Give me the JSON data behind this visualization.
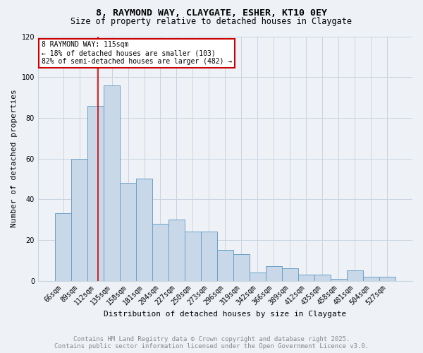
{
  "title1": "8, RAYMOND WAY, CLAYGATE, ESHER, KT10 0EY",
  "title2": "Size of property relative to detached houses in Claygate",
  "xlabel": "Distribution of detached houses by size in Claygate",
  "ylabel": "Number of detached properties",
  "categories": [
    "66sqm",
    "89sqm",
    "112sqm",
    "135sqm",
    "158sqm",
    "181sqm",
    "204sqm",
    "227sqm",
    "250sqm",
    "273sqm",
    "296sqm",
    "319sqm",
    "342sqm",
    "366sqm",
    "389sqm",
    "412sqm",
    "435sqm",
    "458sqm",
    "481sqm",
    "504sqm",
    "527sqm"
  ],
  "values": [
    33,
    60,
    86,
    96,
    48,
    50,
    28,
    30,
    24,
    24,
    15,
    13,
    4,
    7,
    6,
    3,
    3,
    1,
    5,
    2,
    2
  ],
  "bar_color": "#c8d8e8",
  "bar_edge_color": "#6aa0c8",
  "grid_color": "#c8d4e0",
  "background_color": "#eef2f7",
  "annotation_text": "8 RAYMOND WAY: 115sqm\n← 18% of detached houses are smaller (103)\n82% of semi-detached houses are larger (482) →",
  "annotation_box_color": "#ffffff",
  "annotation_border_color": "#cc0000",
  "footer1": "Contains HM Land Registry data © Crown copyright and database right 2025.",
  "footer2": "Contains public sector information licensed under the Open Government Licence v3.0.",
  "ylim": [
    0,
    120
  ],
  "yticks": [
    0,
    20,
    40,
    60,
    80,
    100,
    120
  ],
  "title_fontsize": 9.5,
  "subtitle_fontsize": 8.5,
  "axis_label_fontsize": 8,
  "tick_fontsize": 7,
  "footer_fontsize": 6.5,
  "annotation_fontsize": 7
}
